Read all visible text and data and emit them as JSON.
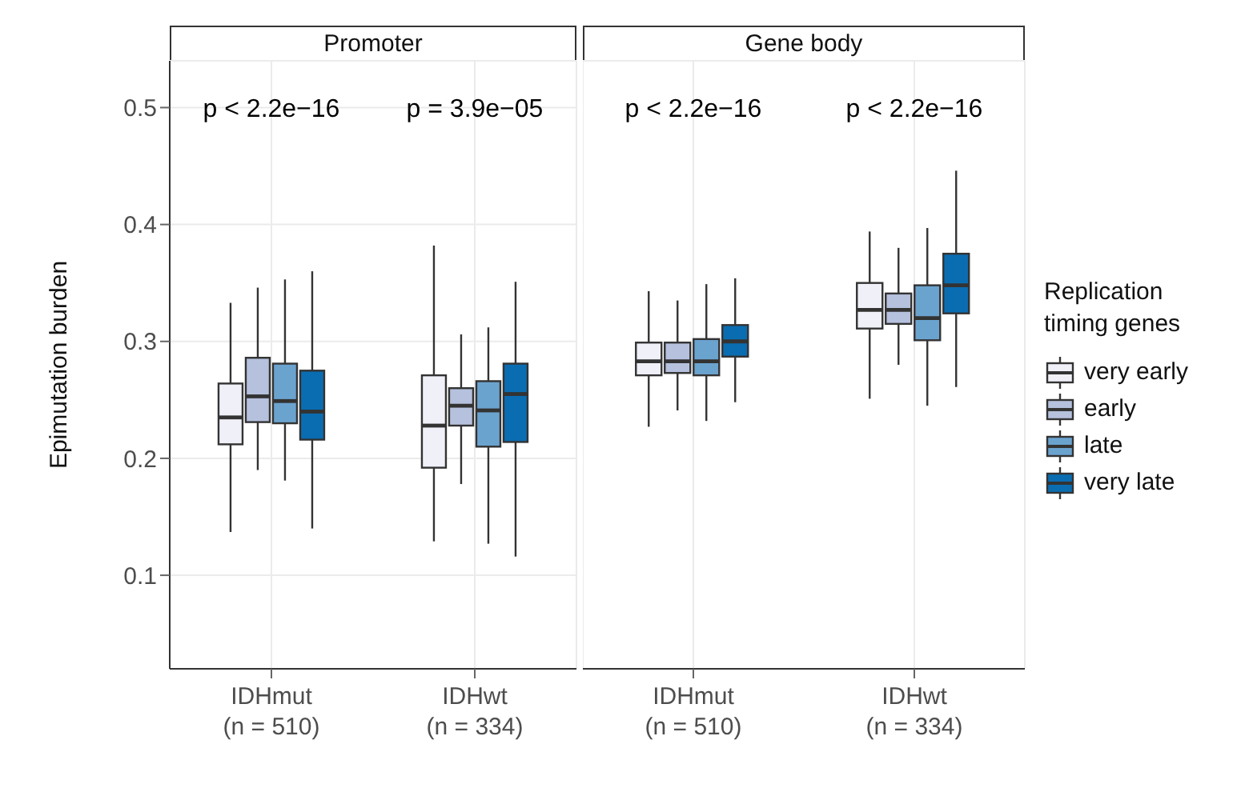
{
  "chart_data": [
    {
      "type": "box",
      "title": "Promoter",
      "ylabel": "Epimutation burden",
      "categories": [
        "IDHmut\n(n = 510)",
        "IDHwt\n(n = 334)"
      ],
      "ylim": [
        0.02,
        0.54
      ],
      "yticks": [
        0.1,
        0.2,
        0.3,
        0.4,
        0.5
      ],
      "grid": true,
      "annotations": [
        "p < 2.2e−16",
        "p = 3.9e−05"
      ],
      "series": [
        {
          "color": "#eff0f8",
          "boxes": [
            {
              "low": 0.137,
              "q1": 0.212,
              "median": 0.235,
              "q3": 0.264,
              "high": 0.333
            },
            {
              "low": 0.129,
              "q1": 0.192,
              "median": 0.228,
              "q3": 0.271,
              "high": 0.382
            }
          ]
        },
        {
          "color": "#b5c1dd",
          "boxes": [
            {
              "low": 0.19,
              "q1": 0.231,
              "median": 0.253,
              "q3": 0.286,
              "high": 0.346
            },
            {
              "low": 0.178,
              "q1": 0.228,
              "median": 0.245,
              "q3": 0.26,
              "high": 0.306
            }
          ]
        },
        {
          "color": "#6ba3cf",
          "boxes": [
            {
              "low": 0.181,
              "q1": 0.23,
              "median": 0.249,
              "q3": 0.281,
              "high": 0.353
            },
            {
              "low": 0.127,
              "q1": 0.21,
              "median": 0.241,
              "q3": 0.266,
              "high": 0.312
            }
          ]
        },
        {
          "color": "#0a6db2",
          "boxes": [
            {
              "low": 0.14,
              "q1": 0.216,
              "median": 0.24,
              "q3": 0.275,
              "high": 0.36
            },
            {
              "low": 0.116,
              "q1": 0.214,
              "median": 0.255,
              "q3": 0.281,
              "high": 0.351
            }
          ]
        }
      ]
    },
    {
      "type": "box",
      "title": "Gene body",
      "categories": [
        "IDHmut\n(n = 510)",
        "IDHwt\n(n = 334)"
      ],
      "ylim": [
        0.02,
        0.54
      ],
      "yticks": [
        0.1,
        0.2,
        0.3,
        0.4,
        0.5
      ],
      "grid": true,
      "tick_labels": "x",
      "legend": "right",
      "legend_title": "Replication\ntiming genes",
      "annotations": [
        "p < 2.2e−16",
        "p < 2.2e−16"
      ],
      "series": [
        {
          "name": "very early",
          "color": "#eff0f8",
          "boxes": [
            {
              "low": 0.227,
              "q1": 0.271,
              "median": 0.283,
              "q3": 0.299,
              "high": 0.343
            },
            {
              "low": 0.251,
              "q1": 0.311,
              "median": 0.327,
              "q3": 0.35,
              "high": 0.394
            }
          ]
        },
        {
          "name": "early",
          "color": "#b5c1dd",
          "boxes": [
            {
              "low": 0.241,
              "q1": 0.273,
              "median": 0.283,
              "q3": 0.299,
              "high": 0.335
            },
            {
              "low": 0.28,
              "q1": 0.315,
              "median": 0.327,
              "q3": 0.341,
              "high": 0.38
            }
          ]
        },
        {
          "name": "late",
          "color": "#6ba3cf",
          "boxes": [
            {
              "low": 0.232,
              "q1": 0.271,
              "median": 0.283,
              "q3": 0.302,
              "high": 0.349
            },
            {
              "low": 0.245,
              "q1": 0.301,
              "median": 0.32,
              "q3": 0.348,
              "high": 0.397
            }
          ]
        },
        {
          "name": "very late",
          "color": "#0a6db2",
          "boxes": [
            {
              "low": 0.248,
              "q1": 0.287,
              "median": 0.3,
              "q3": 0.314,
              "high": 0.354
            },
            {
              "low": 0.261,
              "q1": 0.324,
              "median": 0.348,
              "q3": 0.375,
              "high": 0.446
            }
          ]
        }
      ]
    }
  ]
}
